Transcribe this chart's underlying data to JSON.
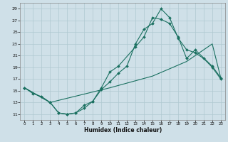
{
  "xlabel": "Humidex (Indice chaleur)",
  "xlim": [
    -0.5,
    23.5
  ],
  "ylim": [
    10,
    30
  ],
  "xticks": [
    0,
    1,
    2,
    3,
    4,
    5,
    6,
    7,
    8,
    9,
    10,
    11,
    12,
    13,
    14,
    15,
    16,
    17,
    18,
    19,
    20,
    21,
    22,
    23
  ],
  "yticks": [
    11,
    13,
    15,
    17,
    19,
    21,
    23,
    25,
    27,
    29
  ],
  "bg_color": "#cfe0e8",
  "grid_color": "#aec8d0",
  "line_color": "#1a7060",
  "line1_x": [
    0,
    1,
    2,
    3,
    4,
    5,
    6,
    7,
    8,
    9,
    10,
    11,
    12,
    13,
    14,
    15,
    16,
    17,
    18,
    19,
    20,
    21,
    22,
    23
  ],
  "line1_y": [
    15.5,
    14.5,
    14.0,
    13.0,
    11.2,
    11.0,
    11.2,
    12.0,
    13.2,
    15.2,
    16.5,
    18.0,
    19.2,
    23.0,
    25.5,
    26.5,
    29.0,
    27.5,
    24.0,
    22.0,
    21.5,
    20.5,
    19.0,
    17.0
  ],
  "line2_x": [
    0,
    3,
    4,
    5,
    6,
    7,
    8,
    9,
    10,
    11,
    13,
    14,
    15,
    16,
    17,
    18,
    19,
    20,
    22,
    23
  ],
  "line2_y": [
    15.5,
    13.0,
    11.2,
    11.0,
    11.2,
    12.5,
    13.2,
    15.5,
    18.2,
    19.2,
    22.5,
    24.2,
    27.5,
    27.2,
    26.5,
    24.2,
    20.5,
    22.0,
    19.2,
    17.2
  ],
  "line3_x": [
    0,
    3,
    10,
    15,
    19,
    22,
    23
  ],
  "line3_y": [
    15.5,
    13.0,
    15.5,
    17.5,
    20.0,
    23.0,
    17.2
  ]
}
